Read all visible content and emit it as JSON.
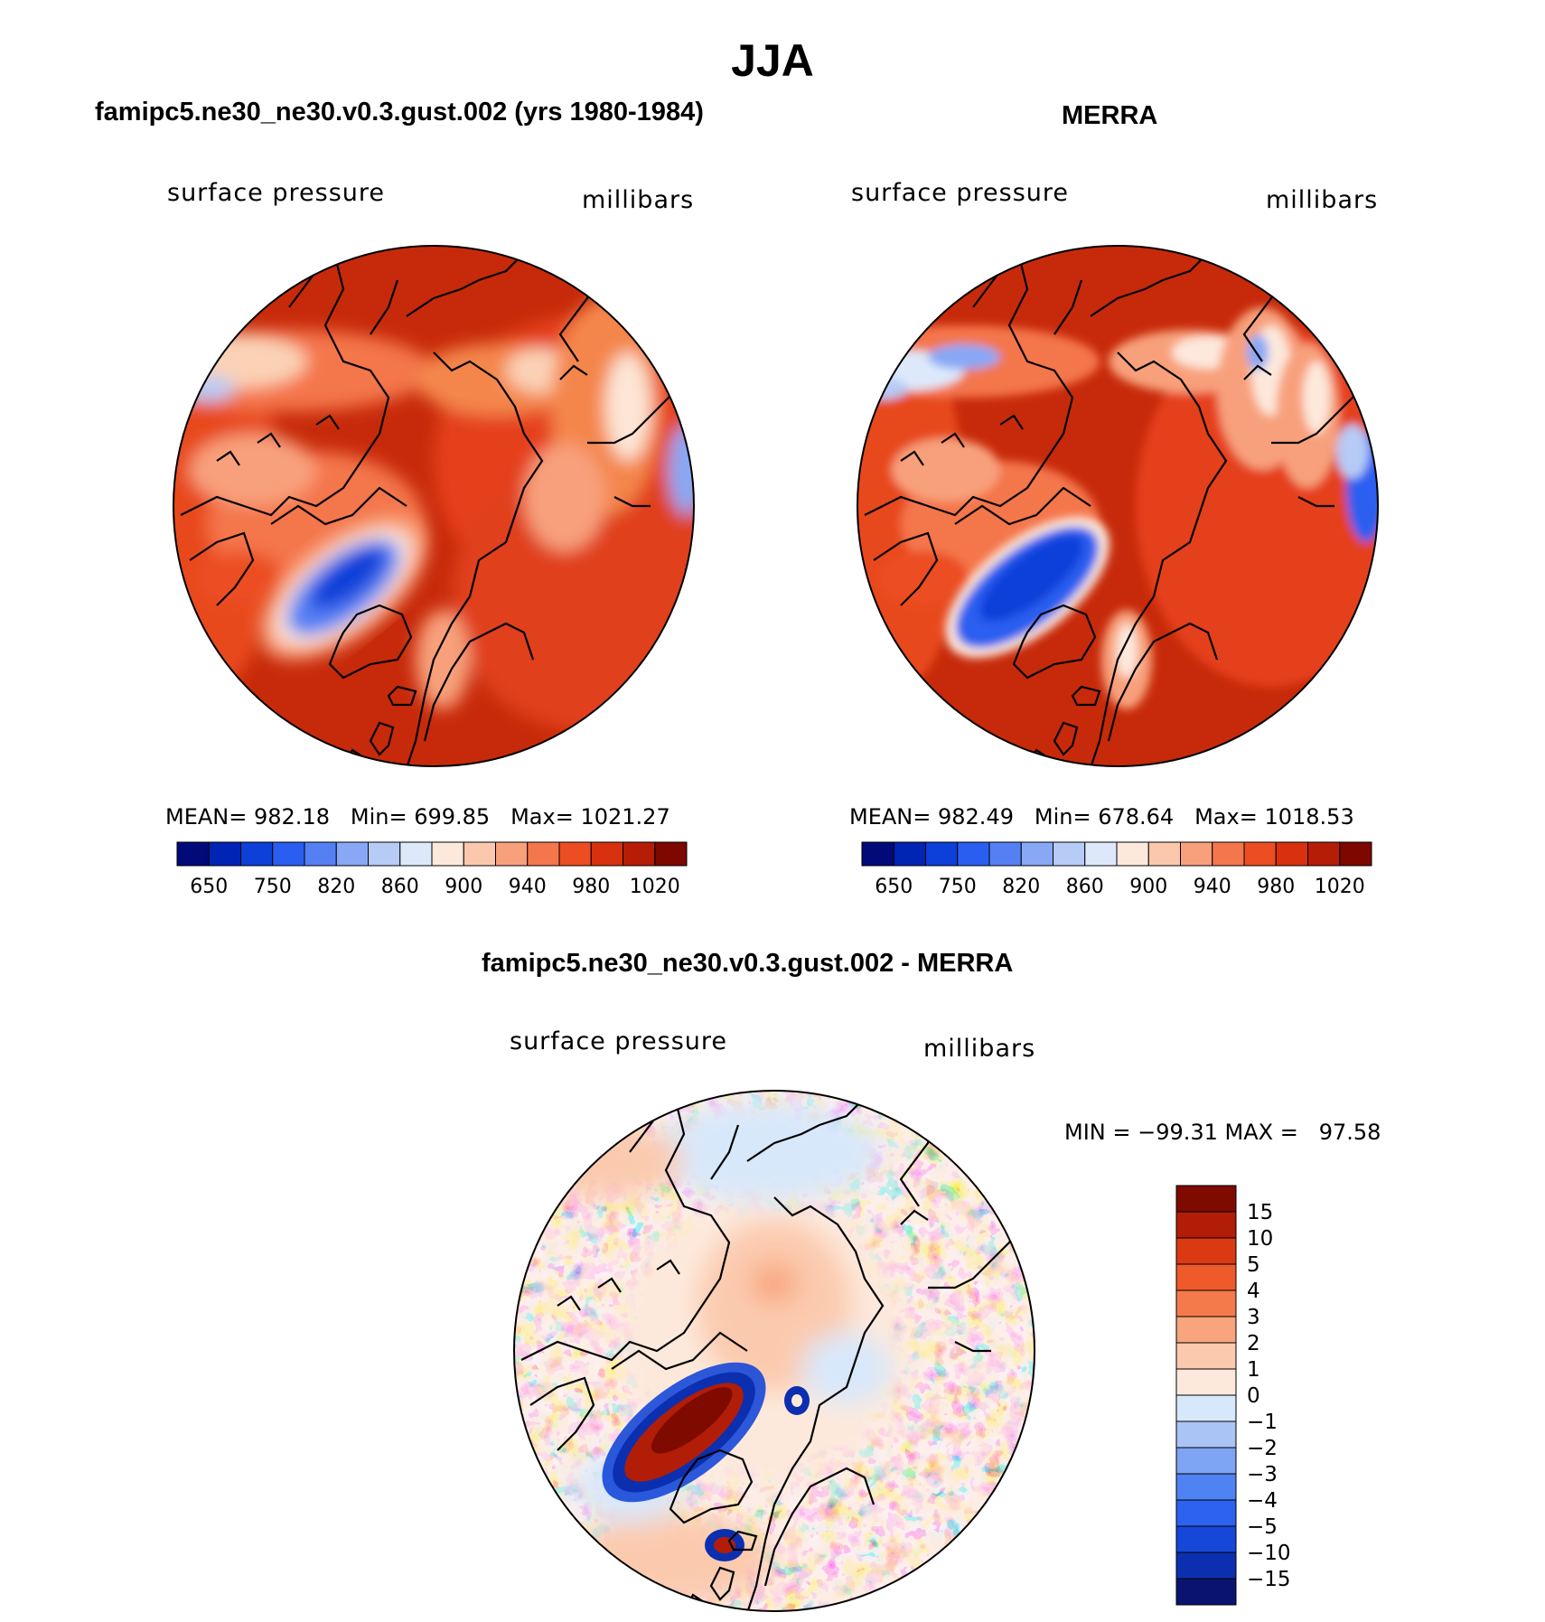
{
  "title": "JJA",
  "palette": {
    "abs": [
      "#000a78",
      "#0024b4",
      "#0d3fd9",
      "#2a5ef0",
      "#5480f4",
      "#88a8f5",
      "#b6cbf6",
      "#dde9fb",
      "#fde8dc",
      "#fbc8ae",
      "#f8a07c",
      "#f4764c",
      "#ec4d22",
      "#d7310f",
      "#b61d06",
      "#7d0800"
    ],
    "diff": [
      "#0a1470",
      "#0c2fb0",
      "#1548d8",
      "#2c62ef",
      "#4f83f4",
      "#7ea4f4",
      "#abc4f6",
      "#d8e8fb",
      "#fde9dc",
      "#fbcaae",
      "#f8a47c",
      "#f47a4c",
      "#ef5a2a",
      "#d93a12",
      "#b11d07",
      "#7e0a00"
    ]
  },
  "panels": [
    {
      "title": "famipc5.ne30_ne30.v0.3.gust.002 (yrs 1980-1984)",
      "left_label": "surface pressure",
      "right_label": "millibars",
      "mean_label": "MEAN=",
      "mean": "982.18",
      "min_label": "Min=",
      "min": "699.85",
      "max_label": "Max=",
      "max": "1021.27",
      "tick_labels": [
        "650",
        "750",
        "820",
        "860",
        "900",
        "940",
        "980",
        "1020"
      ]
    },
    {
      "title": "MERRA",
      "left_label": "surface pressure",
      "right_label": "millibars",
      "mean_label": "MEAN=",
      "mean": "982.49",
      "min_label": "Min=",
      "min": "678.64",
      "max_label": "Max=",
      "max": "1018.53",
      "tick_labels": [
        "650",
        "750",
        "820",
        "860",
        "900",
        "940",
        "980",
        "1020"
      ]
    }
  ],
  "diff_panel": {
    "title": "famipc5.ne30_ne30.v0.3.gust.002 - MERRA",
    "left_label": "surface pressure",
    "right_label": "millibars",
    "minmax": "MIN = −99.31 MAX =   97.58",
    "tick_labels": [
      "15",
      "10",
      "5",
      "4",
      "3",
      "2",
      "1",
      "0",
      "−1",
      "−2",
      "−3",
      "−4",
      "−5",
      "−10",
      "−15"
    ]
  }
}
